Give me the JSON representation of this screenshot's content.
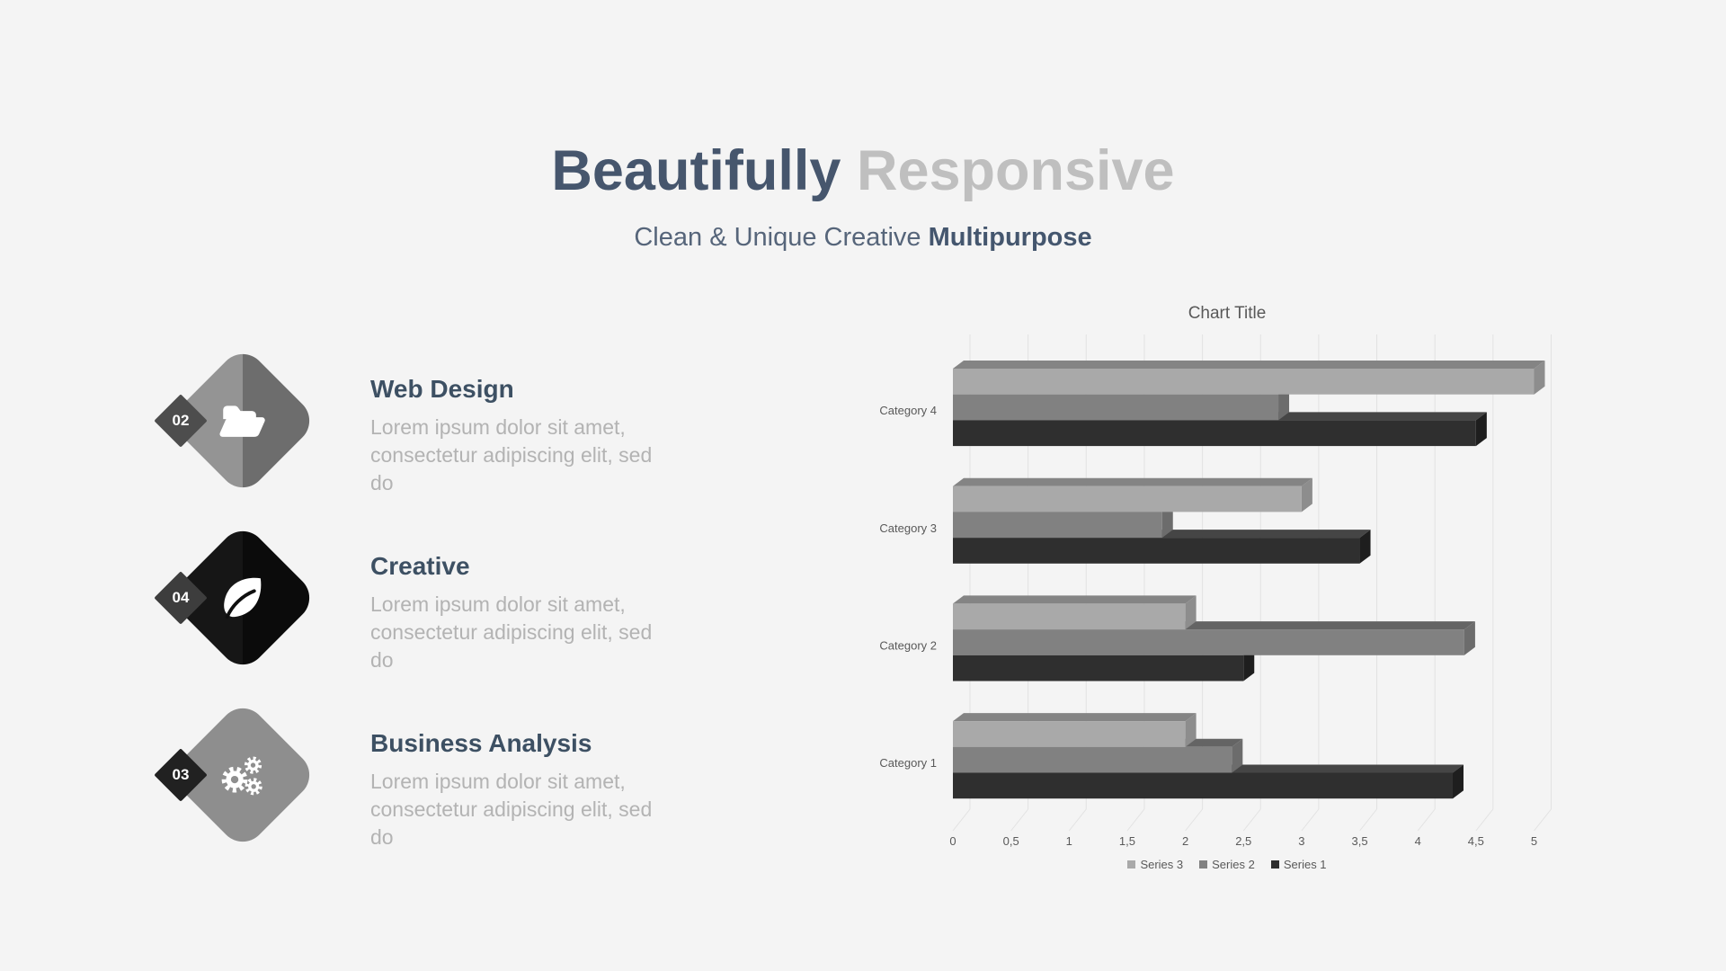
{
  "header": {
    "title_primary": "Beautifully",
    "title_secondary": "Responsive",
    "subtitle_regular": "Clean & Unique Creative ",
    "subtitle_bold": "Multipurpose",
    "title_primary_color": "#46566d",
    "title_secondary_color": "#bfbfbf"
  },
  "features": [
    {
      "number": "02",
      "title": "Web Design",
      "description": "Lorem ipsum dolor sit amet, consectetur adipiscing elit, sed do",
      "icon": "folder-open-icon",
      "diamond_left": "#949494",
      "diamond_right": "#6d6d6d",
      "badge_bg": "#4d4d4d"
    },
    {
      "number": "04",
      "title": "Creative",
      "description": "Lorem ipsum dolor sit amet, consectetur adipiscing elit, sed do",
      "icon": "leaf-icon",
      "diamond_left": "#161616",
      "diamond_right": "#0b0b0b",
      "badge_bg": "#3d3d3d"
    },
    {
      "number": "03",
      "title": "Business Analysis",
      "description": "Lorem ipsum dolor sit amet, consectetur adipiscing elit, sed do",
      "icon": "gears-icon",
      "diamond_left": "#8e8e8e",
      "diamond_right": "#8e8e8e",
      "badge_bg": "#212121"
    }
  ],
  "chart_data": {
    "type": "bar",
    "orientation": "horizontal",
    "style": "3d",
    "title": "Chart Title",
    "categories": [
      "Category 1",
      "Category 2",
      "Category 3",
      "Category 4"
    ],
    "series": [
      {
        "name": "Series 1",
        "values": [
          4.3,
          2.5,
          3.5,
          4.5
        ],
        "color": "#2f2f2f",
        "color_top": "#454545",
        "color_side": "#1e1e1e"
      },
      {
        "name": "Series 2",
        "values": [
          2.4,
          4.4,
          1.8,
          2.8
        ],
        "color": "#818181",
        "color_top": "#646464",
        "color_side": "#6c6c6c"
      },
      {
        "name": "Series 3",
        "values": [
          2.0,
          2.0,
          3.0,
          5.0
        ],
        "color": "#a9a9a9",
        "color_top": "#848484",
        "color_side": "#8d8d8d"
      }
    ],
    "x_ticks": [
      "0",
      "0,5",
      "1",
      "1,5",
      "2",
      "2,5",
      "3",
      "3,5",
      "4",
      "4,5",
      "5"
    ],
    "xlim": [
      0,
      5
    ],
    "xlabel": "",
    "ylabel": "",
    "grid": true,
    "legend": [
      "Series 3",
      "Series 2",
      "Series 1"
    ],
    "legend_position": "bottom",
    "text_color": "#595959",
    "grid_color": "#e2e2e2"
  }
}
